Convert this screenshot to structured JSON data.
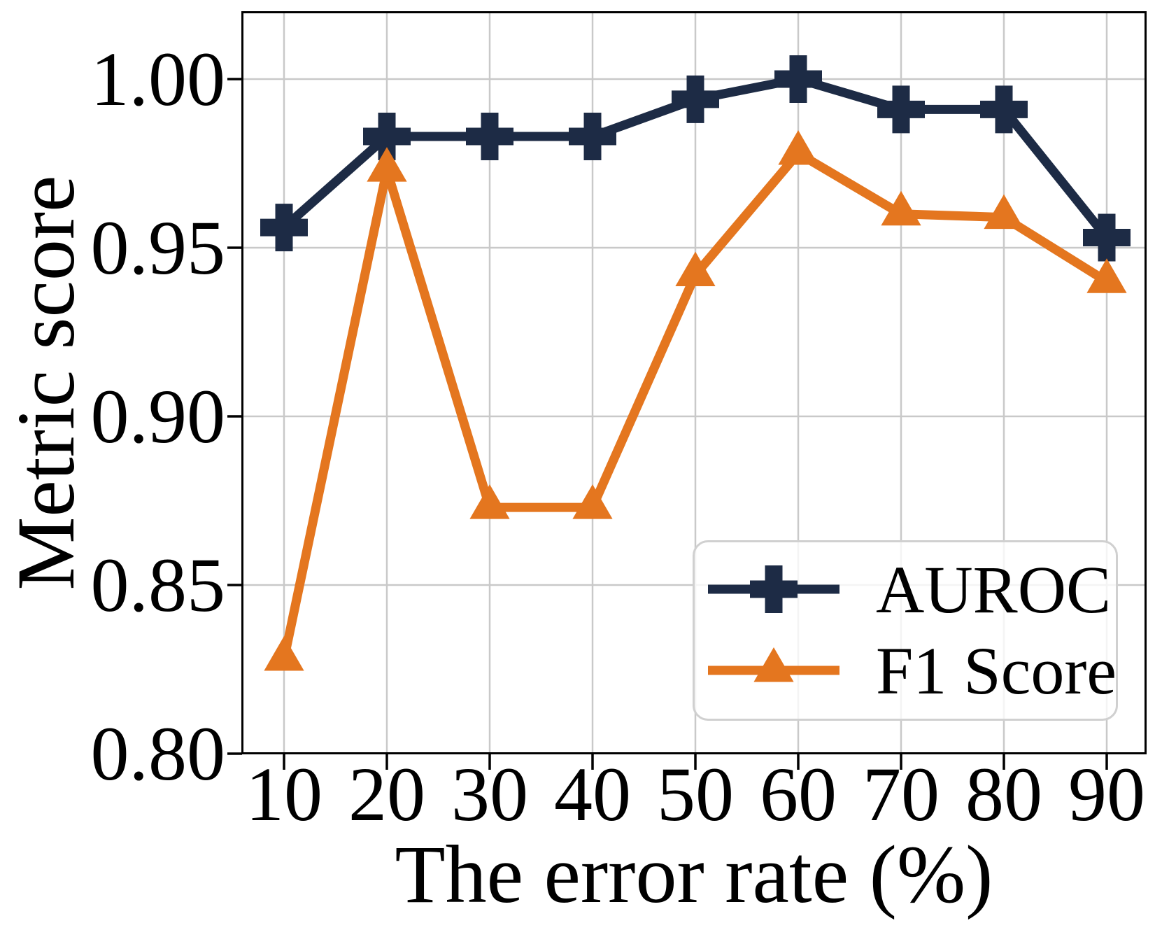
{
  "figure": {
    "background": "#ffffff",
    "plot": {
      "spine_color": "#000000",
      "grid_color": "#c9c9c9",
      "tick_color": "#000000"
    },
    "axes": {
      "x_label": "The error rate (%)",
      "y_label": "Metric score",
      "x_tick_labels": [
        "10",
        "20",
        "30",
        "40",
        "50",
        "60",
        "70",
        "80",
        "90"
      ],
      "y_tick_labels": [
        "1.00",
        "0.95",
        "0.90",
        "0.85",
        "0.80"
      ]
    }
  },
  "legend": {
    "items": [
      {
        "label": "AUROC",
        "marker": "plus-marker-icon",
        "color": "#1d2b45"
      },
      {
        "label": "F1 Score",
        "marker": "triangle-marker-icon",
        "color": "#e4761f"
      }
    ]
  },
  "chart_data": {
    "type": "line",
    "title": "",
    "xlabel": "The error rate (%)",
    "ylabel": "Metric score",
    "x": [
      10,
      20,
      30,
      40,
      50,
      60,
      70,
      80,
      90
    ],
    "series": [
      {
        "name": "AUROC",
        "color": "#1d2b45",
        "marker": "plus",
        "values": [
          0.956,
          0.983,
          0.983,
          0.983,
          0.994,
          1.0,
          0.991,
          0.991,
          0.953
        ]
      },
      {
        "name": "F1 Score",
        "color": "#e4761f",
        "marker": "triangle",
        "values": [
          0.828,
          0.973,
          0.873,
          0.873,
          0.942,
          0.978,
          0.96,
          0.959,
          0.94
        ]
      }
    ],
    "xlim": [
      6,
      94
    ],
    "ylim": [
      0.8,
      1.02
    ],
    "y_ticks": [
      1.0,
      0.95,
      0.9,
      0.85,
      0.8
    ],
    "x_ticks": [
      10,
      20,
      30,
      40,
      50,
      60,
      70,
      80,
      90
    ],
    "grid": true,
    "legend_position": "lower right"
  }
}
